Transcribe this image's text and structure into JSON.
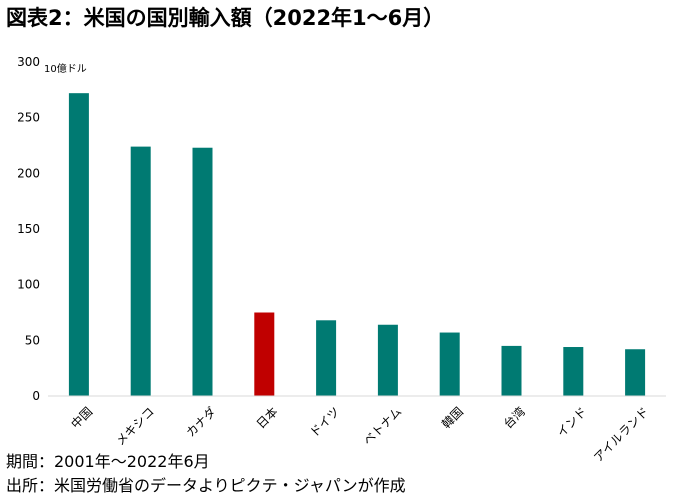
{
  "title": "図表2：米国の国別輸入額（2022年1〜6月）",
  "footer": {
    "period": "期間：2001年〜2022年6月",
    "source": "出所：米国労働省のデータよりピクテ・ジャパンが作成"
  },
  "chart_data": {
    "type": "bar",
    "unit_label": "10億ドル",
    "categories": [
      "中国",
      "メキシコ",
      "カナダ",
      "日本",
      "ドイツ",
      "ベトナム",
      "韓国",
      "台湾",
      "インド",
      "アイルランド"
    ],
    "values": [
      272,
      224,
      223,
      75,
      68,
      64,
      57,
      45,
      44,
      42
    ],
    "ylim": [
      0,
      300
    ],
    "yticks": [
      0,
      50,
      100,
      150,
      200,
      250,
      300
    ],
    "grid": false,
    "colors": {
      "default": "#007A72",
      "highlight": "#C00000",
      "highlight_category": "日本"
    }
  }
}
